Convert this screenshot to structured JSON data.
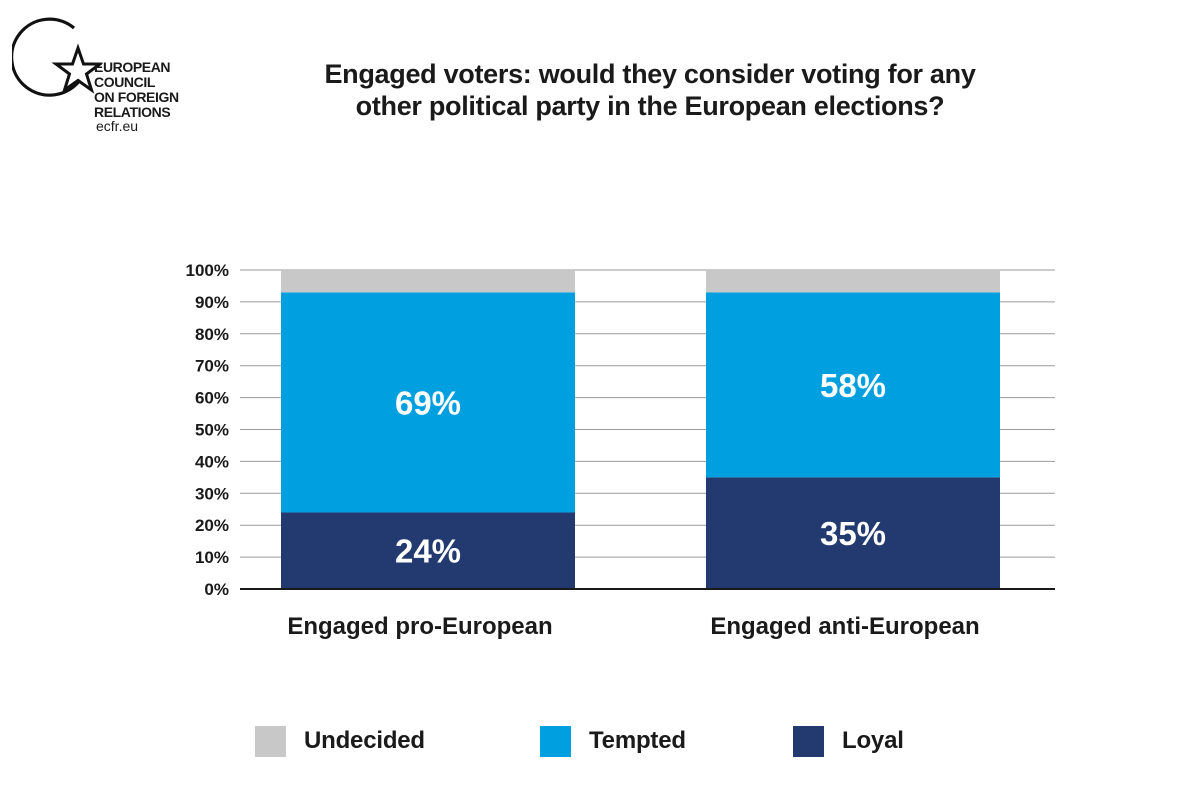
{
  "logo": {
    "lines": [
      "European",
      "Council",
      "on Foreign",
      "Relations"
    ],
    "url": "ecfr.eu"
  },
  "title_lines": [
    "Engaged voters: would they consider voting for any",
    "other political party in the European elections?"
  ],
  "chart_data": {
    "type": "bar",
    "stacked": true,
    "title": "Engaged voters: would they consider voting for any other political party in the European elections?",
    "categories": [
      "Engaged pro-European",
      "Engaged anti-European"
    ],
    "series": [
      {
        "name": "Loyal",
        "values": [
          24,
          35
        ],
        "labels": [
          "24%",
          "35%"
        ],
        "color": "#233a70"
      },
      {
        "name": "Tempted",
        "values": [
          69,
          58
        ],
        "labels": [
          "69%",
          "58%"
        ],
        "color": "#009fdf"
      },
      {
        "name": "Undecided",
        "values": [
          7,
          7
        ],
        "labels": [
          "",
          ""
        ],
        "color": "#c8c8c8"
      }
    ],
    "ylim": [
      0,
      100
    ],
    "yticks": [
      "0%",
      "10%",
      "20%",
      "30%",
      "40%",
      "50%",
      "60%",
      "70%",
      "80%",
      "90%",
      "100%"
    ],
    "grid": true,
    "legend_position": "bottom",
    "legend_order": [
      "Undecided",
      "Tempted",
      "Loyal"
    ]
  }
}
